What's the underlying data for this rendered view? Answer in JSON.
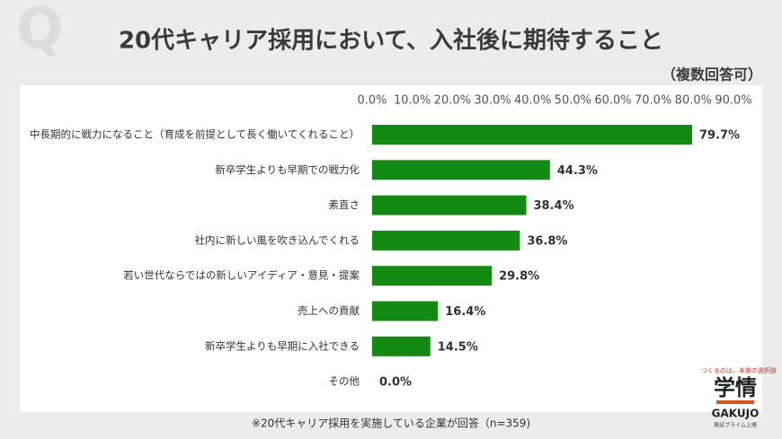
{
  "chart_data": {
    "type": "bar",
    "orientation": "horizontal",
    "title": "20代キャリア採用において、入社後に期待すること",
    "subtitle": "（複数回答可）",
    "categories": [
      "中長期的に戦力になること（育成を前提として長く働いてくれること）",
      "新卒学生よりも早期での戦力化",
      "素直さ",
      "社内に新しい風を吹き込んでくれる",
      "若い世代ならではの新しいアイディア・意見・提案",
      "売上への貢献",
      "新卒学生よりも早期に入社できる",
      "その他"
    ],
    "values": [
      79.7,
      44.3,
      38.4,
      36.8,
      29.8,
      16.4,
      14.5,
      0.0
    ],
    "value_labels": [
      "79.7%",
      "44.3%",
      "38.4%",
      "36.8%",
      "29.8%",
      "16.4%",
      "14.5%",
      "0.0%"
    ],
    "color": "#138b13",
    "xlim": [
      0,
      90
    ],
    "xticks": [
      {
        "value": 0,
        "label": "0.0%"
      },
      {
        "value": 10,
        "label": "10.0%"
      },
      {
        "value": 20,
        "label": "20.0%"
      },
      {
        "value": 30,
        "label": "30.0%"
      },
      {
        "value": 40,
        "label": "40.0%"
      },
      {
        "value": 50,
        "label": "50.0%"
      },
      {
        "value": 60,
        "label": "60.0%"
      },
      {
        "value": 70,
        "label": "70.0%"
      },
      {
        "value": 80,
        "label": "80.0%"
      },
      {
        "value": 90,
        "label": "90.0%"
      }
    ],
    "note": "※20代キャリア採用を実施している企業が回答（n=359)"
  },
  "watermark": "Q",
  "logo": {
    "tagline": "つくるのは、未来の選択肢",
    "name": "学情",
    "roman": "GAKUJO",
    "listing": "東証プライム上場"
  }
}
